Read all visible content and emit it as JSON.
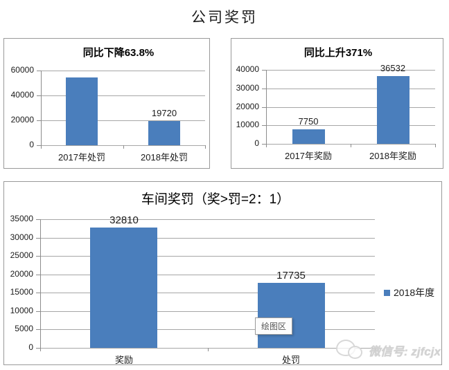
{
  "page": {
    "title": "公司奖罚"
  },
  "colors": {
    "bar": "#4a7ebc",
    "gridline": "#a6a6a6",
    "axis": "#8c8c8c",
    "panel_border": "#999999"
  },
  "chart_data": [
    {
      "id": "company-penalty",
      "type": "bar",
      "title": "同比下降63.8%",
      "categories": [
        "2017年处罚",
        "2018年处罚"
      ],
      "values": [
        54475,
        19720
      ],
      "data_labels": [
        "",
        "19720"
      ],
      "ylabel": "",
      "xlabel": "",
      "ylim": [
        0,
        60000
      ],
      "ytick_step": 20000,
      "grid": true,
      "legend_position": "none"
    },
    {
      "id": "company-reward",
      "type": "bar",
      "title": "同比上升371%",
      "categories": [
        "2017年奖励",
        "2018年奖励"
      ],
      "values": [
        7750,
        36532
      ],
      "data_labels": [
        "7750",
        "36532"
      ],
      "ylabel": "",
      "xlabel": "",
      "ylim": [
        0,
        40000
      ],
      "ytick_step": 10000,
      "grid": true,
      "legend_position": "none"
    },
    {
      "id": "workshop-reward-penalty",
      "type": "bar",
      "title": "车间奖罚（奖>罚=2：1）",
      "categories": [
        "奖励",
        "处罚"
      ],
      "values": [
        32810,
        17735
      ],
      "data_labels": [
        "32810",
        "17735"
      ],
      "ylabel": "",
      "xlabel": "",
      "ylim": [
        0,
        35000
      ],
      "ytick_step": 5000,
      "grid": true,
      "legend_position": "right",
      "legend": {
        "label": "2018年度"
      },
      "plot_area_tooltip": "绘图区"
    }
  ],
  "watermark": {
    "text": "微信号: zjfcjx",
    "icon": "wechat-icon"
  }
}
